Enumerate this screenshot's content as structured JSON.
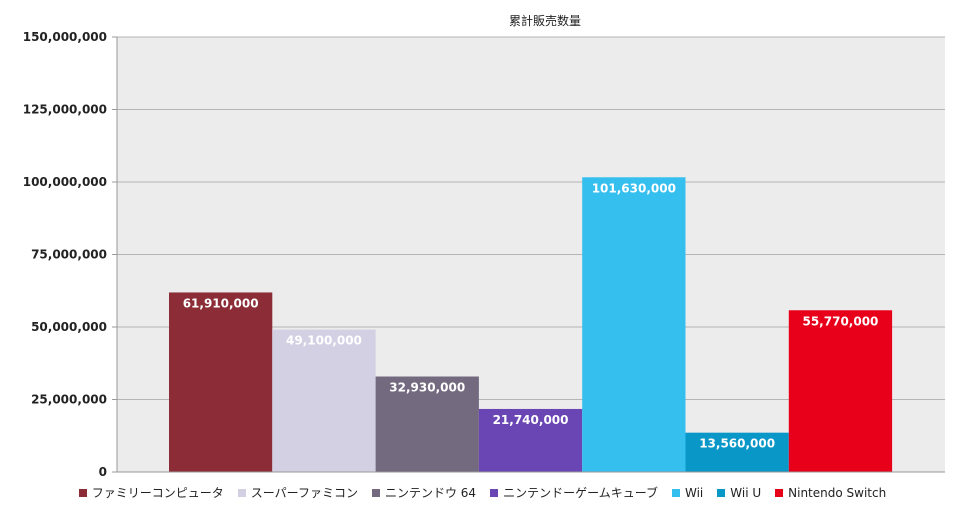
{
  "chart_data": {
    "type": "bar",
    "title": "累計販売数量",
    "xlabel": "",
    "ylabel": "",
    "ylim": [
      0,
      150000000
    ],
    "yticks": [
      0,
      25000000,
      50000000,
      75000000,
      100000000,
      125000000,
      150000000
    ],
    "ytick_labels": [
      "0",
      "25,000,000",
      "50,000,000",
      "75,000,000",
      "100,000,000",
      "125,000,000",
      "150,000,000"
    ],
    "grid": true,
    "legend_position": "bottom",
    "series": [
      {
        "name": "ファミリーコンピュータ",
        "value": 61910000,
        "label": "61,910,000",
        "color": "#8b2c36"
      },
      {
        "name": "スーパーファミコン",
        "value": 49100000,
        "label": "49,100,000",
        "color": "#d3d0e4"
      },
      {
        "name": "ニンテンドウ 64",
        "value": 32930000,
        "label": "32,930,000",
        "color": "#736a80"
      },
      {
        "name": "ニンテンドーゲームキューブ",
        "value": 21740000,
        "label": "21,740,000",
        "color": "#6a45b4"
      },
      {
        "name": "Wii",
        "value": 101630000,
        "label": "101,630,000",
        "color": "#35bfee"
      },
      {
        "name": "Wii U",
        "value": 13560000,
        "label": "13,560,000",
        "color": "#0997c8"
      },
      {
        "name": "Nintendo Switch",
        "value": 55770000,
        "label": "55,770,000",
        "color": "#e8001a"
      }
    ]
  }
}
